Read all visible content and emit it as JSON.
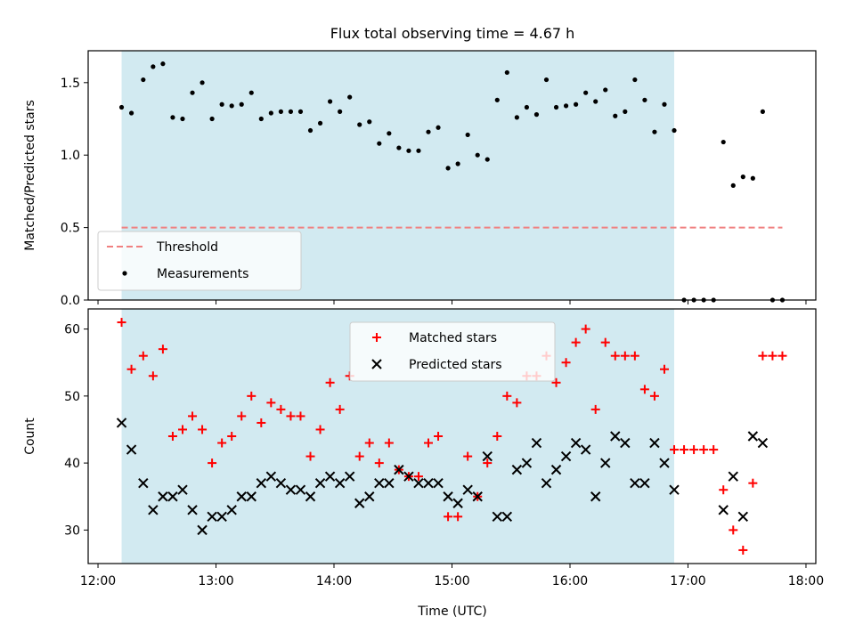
{
  "chart_data": [
    {
      "type": "scatter",
      "title": "Flux total observing time = 4.67 h",
      "xlabel": "",
      "ylabel": "Matched/Predicted stars",
      "xlim": [
        "12:00",
        "18:00"
      ],
      "ylim": [
        0,
        1.72
      ],
      "yticks": [
        "0.0",
        "0.5",
        "1.0",
        "1.5"
      ],
      "shaded_range": [
        "12:12",
        "16:53"
      ],
      "shade_color": "#add8e6",
      "legend_position": "lower-left",
      "legend": [
        "Threshold",
        "Measurements"
      ],
      "series": [
        {
          "name": "Threshold",
          "style": "dashed-line",
          "color": "#f08080",
          "x": [
            "12:12",
            "17:48"
          ],
          "y": [
            0.5,
            0.5
          ]
        },
        {
          "name": "Measurements",
          "style": "dot",
          "color": "#000000",
          "x": [
            "12:12",
            "12:17",
            "12:23",
            "12:28",
            "12:33",
            "12:38",
            "12:43",
            "12:48",
            "12:53",
            "12:58",
            "13:03",
            "13:08",
            "13:13",
            "13:18",
            "13:23",
            "13:28",
            "13:33",
            "13:38",
            "13:43",
            "13:48",
            "13:53",
            "13:58",
            "14:03",
            "14:08",
            "14:13",
            "14:18",
            "14:23",
            "14:28",
            "14:33",
            "14:38",
            "14:43",
            "14:48",
            "14:53",
            "14:58",
            "15:03",
            "15:08",
            "15:13",
            "15:18",
            "15:23",
            "15:28",
            "15:33",
            "15:38",
            "15:43",
            "15:48",
            "15:53",
            "15:58",
            "16:03",
            "16:08",
            "16:13",
            "16:18",
            "16:23",
            "16:28",
            "16:33",
            "16:38",
            "16:43",
            "16:48",
            "16:53",
            "16:58",
            "17:03",
            "17:08",
            "17:13",
            "17:18",
            "17:23",
            "17:28",
            "17:33",
            "17:38",
            "17:43",
            "17:48"
          ],
          "y": [
            1.33,
            1.29,
            1.52,
            1.61,
            1.63,
            1.26,
            1.25,
            1.43,
            1.5,
            1.25,
            1.35,
            1.34,
            1.35,
            1.43,
            1.25,
            1.29,
            1.3,
            1.3,
            1.3,
            1.17,
            1.22,
            1.37,
            1.3,
            1.4,
            1.21,
            1.23,
            1.08,
            1.15,
            1.05,
            1.03,
            1.03,
            1.16,
            1.19,
            0.91,
            0.94,
            1.14,
            1.0,
            0.97,
            1.38,
            1.57,
            1.26,
            1.33,
            1.28,
            1.52,
            1.33,
            1.34,
            1.35,
            1.43,
            1.37,
            1.45,
            1.27,
            1.3,
            1.52,
            1.38,
            1.16,
            1.35,
            1.17,
            0.0,
            0.0,
            0.0,
            0.0,
            1.09,
            0.79,
            0.85,
            0.84,
            1.3,
            0.0,
            0.0
          ]
        }
      ]
    },
    {
      "type": "scatter",
      "title": "",
      "xlabel": "Time (UTC)",
      "ylabel": "Count",
      "xlim": [
        "12:00",
        "18:00"
      ],
      "ylim": [
        25,
        63
      ],
      "yticks": [
        "30",
        "40",
        "50",
        "60"
      ],
      "xticks": [
        "12:00",
        "13:00",
        "14:00",
        "15:00",
        "16:00",
        "17:00",
        "18:00"
      ],
      "shaded_range": [
        "12:12",
        "16:53"
      ],
      "shade_color": "#add8e6",
      "legend_position": "upper-center",
      "legend": [
        "Matched stars",
        "Predicted stars"
      ],
      "series": [
        {
          "name": "Matched stars",
          "style": "plus",
          "color": "#ff0000",
          "x": [
            "12:12",
            "12:17",
            "12:23",
            "12:28",
            "12:33",
            "12:38",
            "12:43",
            "12:48",
            "12:53",
            "12:58",
            "13:03",
            "13:08",
            "13:13",
            "13:18",
            "13:23",
            "13:28",
            "13:33",
            "13:38",
            "13:43",
            "13:48",
            "13:53",
            "13:58",
            "14:03",
            "14:08",
            "14:13",
            "14:18",
            "14:23",
            "14:28",
            "14:33",
            "14:38",
            "14:43",
            "14:48",
            "14:53",
            "14:58",
            "15:03",
            "15:08",
            "15:13",
            "15:18",
            "15:23",
            "15:28",
            "15:33",
            "15:38",
            "15:43",
            "15:48",
            "15:53",
            "15:58",
            "16:03",
            "16:08",
            "16:13",
            "16:18",
            "16:23",
            "16:28",
            "16:33",
            "16:38",
            "16:43",
            "16:48",
            "16:53",
            "16:58",
            "17:03",
            "17:08",
            "17:13",
            "17:18",
            "17:23",
            "17:28",
            "17:33",
            "17:38",
            "17:43",
            "17:48"
          ],
          "y": [
            61,
            54,
            56,
            53,
            57,
            44,
            45,
            47,
            45,
            40,
            43,
            44,
            47,
            50,
            46,
            49,
            48,
            47,
            47,
            41,
            45,
            52,
            48,
            53,
            41,
            43,
            40,
            43,
            39,
            38,
            38,
            43,
            44,
            32,
            32,
            41,
            35,
            40,
            44,
            50,
            49,
            53,
            53,
            56,
            52,
            55,
            58,
            60,
            48,
            58,
            56,
            56,
            56,
            51,
            50,
            54,
            42,
            42,
            42,
            42,
            42,
            36,
            30,
            27,
            37,
            56,
            56,
            56
          ]
        },
        {
          "name": "Predicted stars",
          "style": "x",
          "color": "#000000",
          "x": [
            "12:12",
            "12:17",
            "12:23",
            "12:28",
            "12:33",
            "12:38",
            "12:43",
            "12:48",
            "12:53",
            "12:58",
            "13:03",
            "13:08",
            "13:13",
            "13:18",
            "13:23",
            "13:28",
            "13:33",
            "13:38",
            "13:43",
            "13:48",
            "13:53",
            "13:58",
            "14:03",
            "14:08",
            "14:13",
            "14:18",
            "14:23",
            "14:28",
            "14:33",
            "14:38",
            "14:43",
            "14:48",
            "14:53",
            "14:58",
            "15:03",
            "15:08",
            "15:13",
            "15:18",
            "15:23",
            "15:28",
            "15:33",
            "15:38",
            "15:43",
            "15:48",
            "15:53",
            "15:58",
            "16:03",
            "16:08",
            "16:13",
            "16:18",
            "16:23",
            "16:28",
            "16:33",
            "16:38",
            "16:43",
            "16:48",
            "16:53",
            "17:18",
            "17:23",
            "17:28",
            "17:33",
            "17:38"
          ],
          "y": [
            46,
            42,
            37,
            33,
            35,
            35,
            36,
            33,
            30,
            32,
            32,
            33,
            35,
            35,
            37,
            38,
            37,
            36,
            36,
            35,
            37,
            38,
            37,
            38,
            34,
            35,
            37,
            37,
            39,
            38,
            37,
            37,
            37,
            35,
            34,
            36,
            35,
            41,
            32,
            32,
            39,
            40,
            43,
            37,
            39,
            41,
            43,
            42,
            35,
            40,
            44,
            43,
            37,
            37,
            43,
            40,
            36,
            33,
            38,
            32,
            44,
            43
          ]
        }
      ]
    }
  ]
}
